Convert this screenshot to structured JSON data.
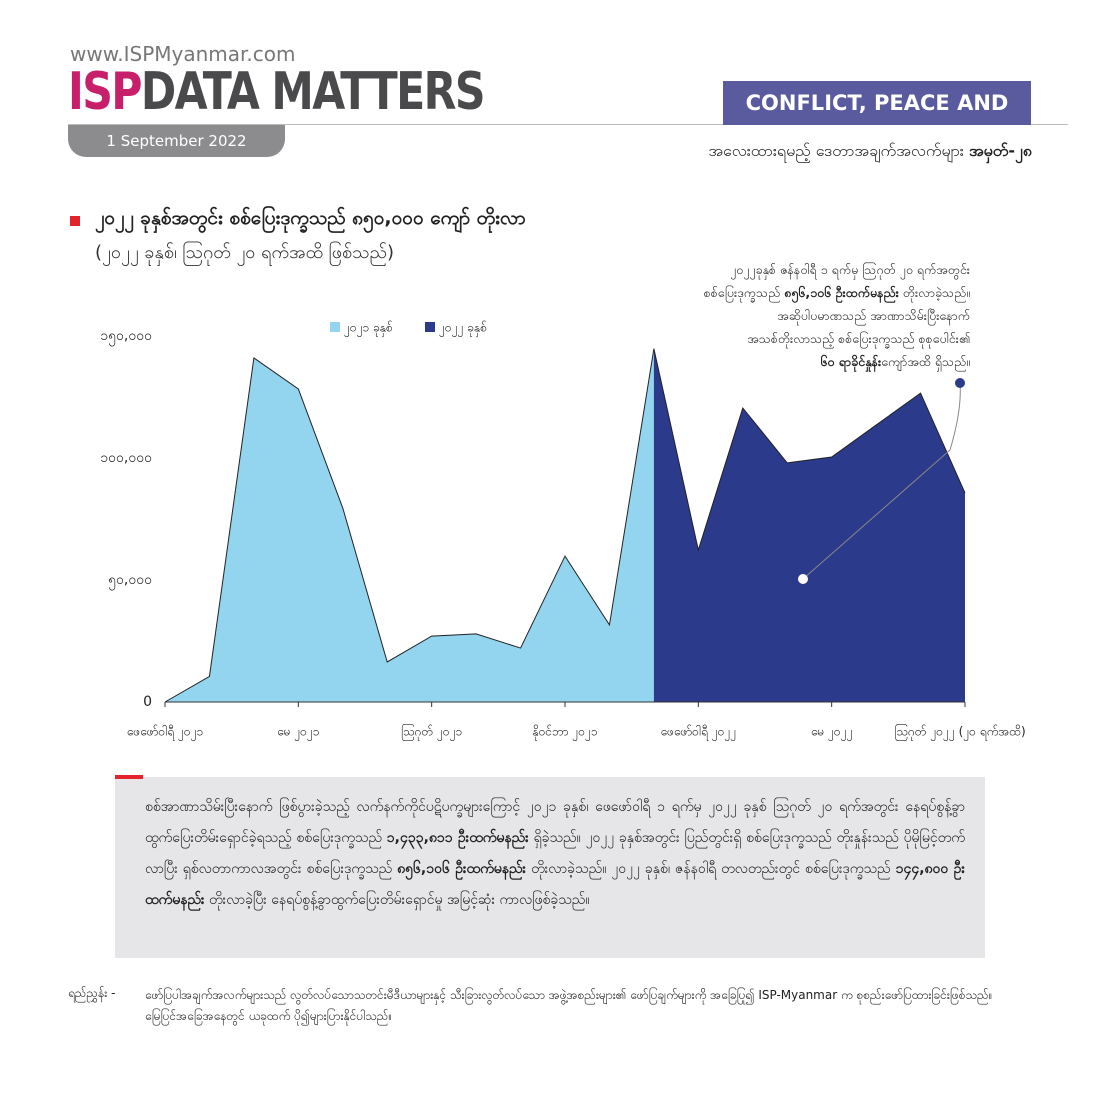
{
  "header": {
    "website": "www.ISPMyanmar.com",
    "brand": "ISP",
    "brand_title": "DATA MATTERS",
    "date": "1 September 2022",
    "section": "CONFLICT, PEACE AND SECURITY",
    "series_title": "အလေးထားရမည့် ဒေတာအချက်အလက်များ",
    "series_number": "အမှတ်-၂၈"
  },
  "chart_data": {
    "type": "area",
    "title": "၂၀၂၂ ခုနှစ်အတွင်း စစ်ပြေးဒုက္ခသည် ၈၅၀,၀၀၀ ကျော် တိုးလာ",
    "subtitle": "(၂၀၂၂ ခုနှစ်၊ ဩဂုတ် ၂၀ ရက်အထိ ဖြစ်သည်)",
    "categories": [
      "ဖေဖော်ဝါရီ ၂၀၂၁",
      null,
      null,
      "မေ ၂၀၂၁",
      null,
      null,
      "ဩဂုတ် ၂၀၂၁",
      null,
      null,
      "နိုဝင်ဘာ ၂၀၂၁",
      null,
      null,
      "ဖေဖော်ဝါရီ ၂၀၂၂",
      null,
      null,
      "မေ ၂၀၂၂",
      null,
      null,
      "ဩဂုတ် ၂၀၂၂ (၂၀ ရက်အထိ)"
    ],
    "series": [
      {
        "name": "၂၀၂၁ ခုနှစ်",
        "color": "#93d4ef",
        "values": [
          0,
          10500,
          141000,
          128300,
          79500,
          16400,
          27000,
          27900,
          22100,
          59800,
          31600,
          144800,
          null,
          null,
          null,
          null,
          null,
          null,
          null
        ]
      },
      {
        "name": "၂၀၂၂ ခုနှစ်",
        "color": "#2c3a8c",
        "values": [
          null,
          null,
          null,
          null,
          null,
          null,
          null,
          null,
          null,
          null,
          null,
          144800,
          62300,
          120500,
          98000,
          100400,
          113500,
          126600,
          85700
        ]
      }
    ],
    "ylim": [
      0,
      150000
    ],
    "yticks": [
      0,
      {
        "value": 50000,
        "label": "၅၀,၀၀၀"
      },
      {
        "value": 100000,
        "label": "၁၀၀,၀၀၀"
      },
      {
        "value": 150000,
        "label": "၁၅၀,၀၀၀"
      }
    ],
    "grid": false,
    "annotation": [
      "၂၀၂၂ခုနှစ် ဇန်နဝါရီ ၁ ရက်မှ ဩဂုတ် ၂၀ ရက်အတွင်း",
      "စစ်ပြေးဒုက္ခသည် ",
      "၈၅၆,၁၀၆ ဦးထက်မနည်း",
      " တိုးလာခဲ့သည်။",
      "အဆိုပါပမာဏသည် အာဏာသိမ်းပြီးနောက်",
      "အသစ်တိုးလာသည့် စစ်ပြေးဒုက္ခသည် စုစုပေါင်း၏",
      "၆၀ ရာခိုင်နှုန်း",
      "ကျော်အထိ ရှိသည်။"
    ]
  },
  "paragraph": [
    "စစ်အာဏာသိမ်းပြီးနောက် ဖြစ်ပွားခဲ့သည့် လက်နက်ကိုင်ပဋိပက္ခများကြောင့် ၂၀၂၁ ခုနှစ်၊ ဖေဖော်ဝါရီ ၁ ရက်မှ ၂၀၂၂ ခုနှစ် ဩဂုတ် ၂၀ ရက်အတွင်း နေရပ်စွန့်ခွာ ထွက်ပြေးတိမ်းရှောင်ခဲ့ရသည့် စစ်ပြေးဒုက္ခသည် ",
    "၁,၄၃၃,၈၁၁ ဦးထက်မနည်း",
    " ရှိခဲ့သည်။ ၂၀၂၂ ခုနှစ်အတွင်း ပြည်တွင်းရှိ စစ်ပြေးဒုက္ခသည် တိုးနှုန်းသည် ပိုမိုမြင့်တက်လာပြီး ရှစ်လတာကာလအတွင်း စစ်ပြေးဒုက္ခသည် ",
    "၈၅၆,၁၀၆ ဦးထက်မနည်း",
    " တိုးလာခဲ့သည်။ ၂၀၂၂ ခုနှစ်၊ ဇန်နဝါရီ တလတည်းတွင် စစ်ပြေးဒုက္ခသည် ",
    "၁၄၄,၈၀၀ ဦးထက်မနည်း",
    " တိုးလာခဲ့ပြီး နေရပ်စွန့်ခွာထွက်ပြေးတိမ်းရှောင်မှု အမြင့်ဆုံး ကာလဖြစ်ခဲ့သည်။"
  ],
  "footer": {
    "label": "ရည်ညွှန်း -",
    "text": "ဖော်ပြပါအချက်အလက်များသည် လွတ်လပ်သောသတင်းမီဒီယာများနှင့် သီးခြားလွတ်လပ်သော အဖွဲ့အစည်းများ၏ ဖော်ပြချက်များကို အခြေပြု၍ ISP-Myanmar က စုစည်းဖော်ပြထားခြင်းဖြစ်သည်။ မြေပြင်အခြေအနေတွင် ယခုထက် ပို၍များပြားနိုင်ပါသည်။"
  }
}
